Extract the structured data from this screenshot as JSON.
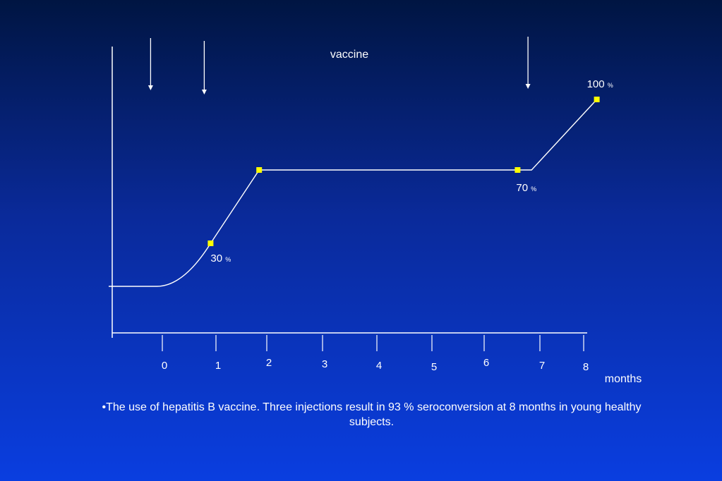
{
  "chart_data": {
    "type": "line",
    "annotation_label": "vaccine",
    "vaccine_months": [
      -0.1,
      0.9,
      6.9
    ],
    "x_ticks": [
      0,
      1,
      2,
      3,
      4,
      5,
      6,
      7,
      8
    ],
    "x_tick_labels": [
      "0",
      "1",
      "2",
      "3",
      "4",
      "5",
      "6",
      "7",
      "8"
    ],
    "xlabel": "months",
    "curve": [
      {
        "x": -1.0,
        "y": 0
      },
      {
        "x": -0.1,
        "y": 0
      },
      {
        "x": 0.4,
        "y": 10
      },
      {
        "x": 0.9,
        "y": 30
      },
      {
        "x": 1.85,
        "y": 70
      },
      {
        "x": 6.85,
        "y": 70
      },
      {
        "x": 8.3,
        "y": 100
      }
    ],
    "markers": [
      {
        "x": 0.9,
        "y": 30,
        "label": "30"
      },
      {
        "x": 1.85,
        "y": 70,
        "label": ""
      },
      {
        "x": 6.6,
        "y": 70,
        "label": "70"
      },
      {
        "x": 8.3,
        "y": 100,
        "label": "100"
      }
    ],
    "unit_symbol": "%",
    "marker_color": "#ffff00",
    "line_color": "#ffffff"
  },
  "caption": "•The use of hepatitis B vaccine. Three injections result in 93 %  seroconversion at 8 months in young healthy subjects."
}
